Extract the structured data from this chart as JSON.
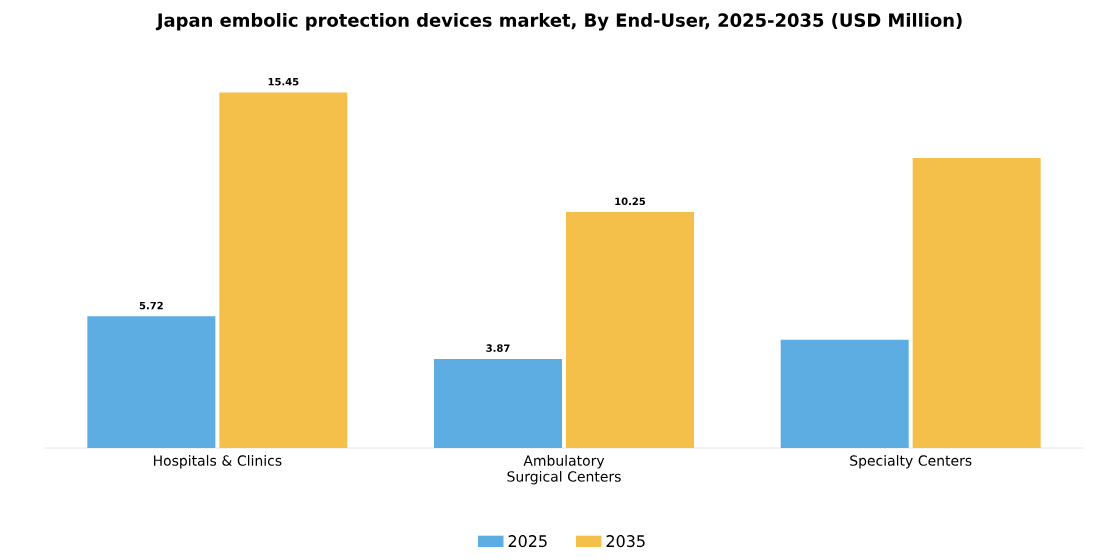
{
  "chart_data": {
    "type": "bar",
    "title": "Japan embolic protection devices market, By End-User, 2025-2035 (USD Million)",
    "categories": [
      "Hospitals & Clinics",
      "Ambulatory Surgical Centers",
      "Specialty Centers"
    ],
    "series": [
      {
        "name": "2025",
        "color": "#5dade2",
        "values": [
          5.72,
          3.87,
          4.7
        ],
        "value_labels": [
          "5.72",
          "3.87",
          null
        ]
      },
      {
        "name": "2035",
        "color": "#f5c04a",
        "values": [
          15.45,
          10.25,
          12.6
        ],
        "value_labels": [
          "15.45",
          "10.25",
          null
        ]
      }
    ],
    "legend": "bottom"
  }
}
